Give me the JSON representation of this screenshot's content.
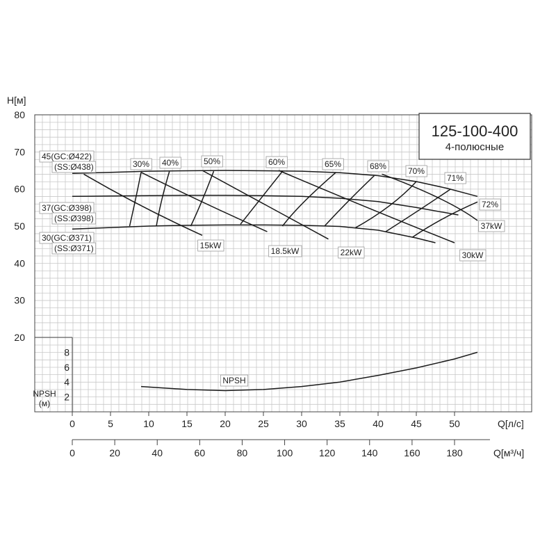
{
  "chart_data": {
    "type": "line",
    "title": "125-100-400",
    "subtitle": "4-полюсные",
    "ylabel": "H[м]",
    "ylim": [
      20,
      80
    ],
    "y_ticks": [
      "20",
      "30",
      "40",
      "50",
      "60",
      "70",
      "80"
    ],
    "xlabel_ls": "Q[л/с]",
    "x_ticks_ls": [
      "0",
      "5",
      "10",
      "15",
      "20",
      "25",
      "30",
      "35",
      "40",
      "45",
      "50"
    ],
    "xlabel_m3h": "Q[м³/ч]",
    "x_ticks_m3h": [
      "0",
      "20",
      "40",
      "60",
      "80",
      "100",
      "120",
      "140",
      "160",
      "180"
    ],
    "xlim_ls": [
      0,
      55
    ],
    "npsh_label": [
      "NPSH",
      "(м)"
    ],
    "npsh_ticks": [
      "2",
      "4",
      "6",
      "8"
    ],
    "npsh_ylim": [
      0,
      10
    ],
    "head_curves": [
      {
        "labels": [
          "45(GC:Ø422)",
          "(SS:Ø438)"
        ],
        "x": [
          0,
          5,
          10,
          15,
          20,
          25,
          30,
          35,
          40,
          45,
          49,
          53
        ],
        "y": [
          64.2,
          64.5,
          64.8,
          64.9,
          65.0,
          64.9,
          64.8,
          64.4,
          63.6,
          62.0,
          60.2,
          58.0
        ]
      },
      {
        "labels": [
          "37(GC:Ø398)",
          "(SS:Ø398)"
        ],
        "x": [
          0,
          5,
          10,
          15,
          20,
          25,
          30,
          35,
          40,
          45,
          50.5
        ],
        "y": [
          58.0,
          58.1,
          58.2,
          58.3,
          58.3,
          58.2,
          58.0,
          57.5,
          56.6,
          55.0,
          53.0
        ]
      },
      {
        "labels": [
          "30(GC:Ø371)",
          "(SS:Ø371)"
        ],
        "x": [
          0,
          5,
          10,
          15,
          20,
          25,
          30,
          35,
          40,
          45,
          47.5
        ],
        "y": [
          49.2,
          49.6,
          50.0,
          50.2,
          50.3,
          50.3,
          50.2,
          49.9,
          48.9,
          46.8,
          45.5
        ]
      }
    ],
    "efficiency_curves": [
      {
        "label": "30%",
        "x": [
          7.5,
          8.3,
          9.0
        ],
        "y": [
          50.0,
          57.5,
          64.5
        ]
      },
      {
        "label": "40%",
        "x": [
          11.0,
          11.7,
          12.7
        ],
        "y": [
          50.0,
          57.0,
          64.7
        ]
      },
      {
        "label": "50%",
        "x": [
          15.5,
          17.0,
          18.5
        ],
        "y": [
          50.0,
          57.0,
          64.8
        ]
      },
      {
        "label": "60%",
        "x": [
          22.0,
          24.5,
          27.5
        ],
        "y": [
          50.5,
          57.0,
          64.8
        ]
      },
      {
        "label": "65%",
        "x": [
          27.5,
          30.3,
          34.5
        ],
        "y": [
          50.0,
          56.5,
          64.5
        ]
      },
      {
        "label": "68%",
        "x": [
          33.0,
          36.0,
          39.5
        ],
        "y": [
          50.0,
          56.5,
          63.6
        ]
      },
      {
        "label": "70%",
        "x": [
          37.0,
          41.5,
          45.0
        ],
        "y": [
          49.5,
          55.5,
          62.0
        ]
      },
      {
        "label": "71%",
        "x": [
          41.0,
          45.5,
          49.5
        ],
        "y": [
          48.5,
          54.5,
          60.0
        ]
      },
      {
        "label": "72%",
        "x": [
          44.5,
          48.5,
          53.0
        ],
        "y": [
          47.0,
          52.0,
          56.5
        ]
      }
    ],
    "power_curves": [
      {
        "label": "15kW",
        "x": [
          1.5,
          9,
          17
        ],
        "y": [
          64.0,
          55.5,
          47.5
        ]
      },
      {
        "label": "18.5kW",
        "x": [
          9.0,
          17,
          25.5
        ],
        "y": [
          64.5,
          56.5,
          48.5
        ]
      },
      {
        "label": "22kW",
        "x": [
          17.0,
          25,
          33.5
        ],
        "y": [
          65.0,
          56.0,
          46.5
        ]
      },
      {
        "label": "30kW",
        "x": [
          27.0,
          38,
          50
        ],
        "y": [
          65.0,
          55.5,
          45.5
        ]
      },
      {
        "label": "37kW",
        "x": [
          40.5,
          48,
          53
        ],
        "y": [
          64.0,
          57.5,
          51.5
        ]
      }
    ],
    "npsh_curve": {
      "label": "NPSH",
      "x": [
        9,
        15,
        20,
        25,
        30,
        35,
        40,
        45,
        50,
        53
      ],
      "y": [
        3.4,
        3.0,
        2.85,
        3.0,
        3.4,
        4.0,
        4.9,
        5.9,
        7.1,
        8.0
      ]
    }
  }
}
